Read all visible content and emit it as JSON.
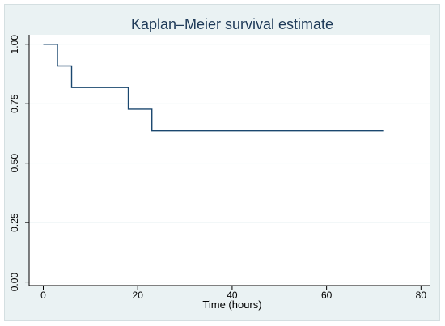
{
  "chart_data": {
    "type": "line",
    "title": "Kaplan–Meier survival estimate",
    "xlabel": "Time (hours)",
    "ylabel": "",
    "xlim": [
      -3,
      82
    ],
    "ylim": [
      -0.015,
      1.04
    ],
    "xticks": [
      0,
      20,
      40,
      60,
      80
    ],
    "xtick_labels": [
      "0",
      "20",
      "40",
      "60",
      "80"
    ],
    "yticks": [
      0,
      0.25,
      0.5,
      0.75,
      1.0
    ],
    "ytick_labels": [
      "0.00",
      "0.25",
      "0.50",
      "0.75",
      "1.00"
    ],
    "grid": {
      "y": true,
      "x": false
    },
    "legend": "none",
    "series": [
      {
        "step": "post",
        "color": "#1a476f",
        "x": [
          0,
          3,
          6,
          18,
          23,
          72
        ],
        "y": [
          1.0,
          0.909,
          0.818,
          0.727,
          0.636,
          0.636
        ]
      }
    ],
    "colors": {
      "outer_background": "#eaf2f3",
      "plot_background": "#ffffff",
      "gridline": "#eaf2f3",
      "axis": "#000000",
      "text": "#000000",
      "title": "#1e3a58"
    }
  }
}
